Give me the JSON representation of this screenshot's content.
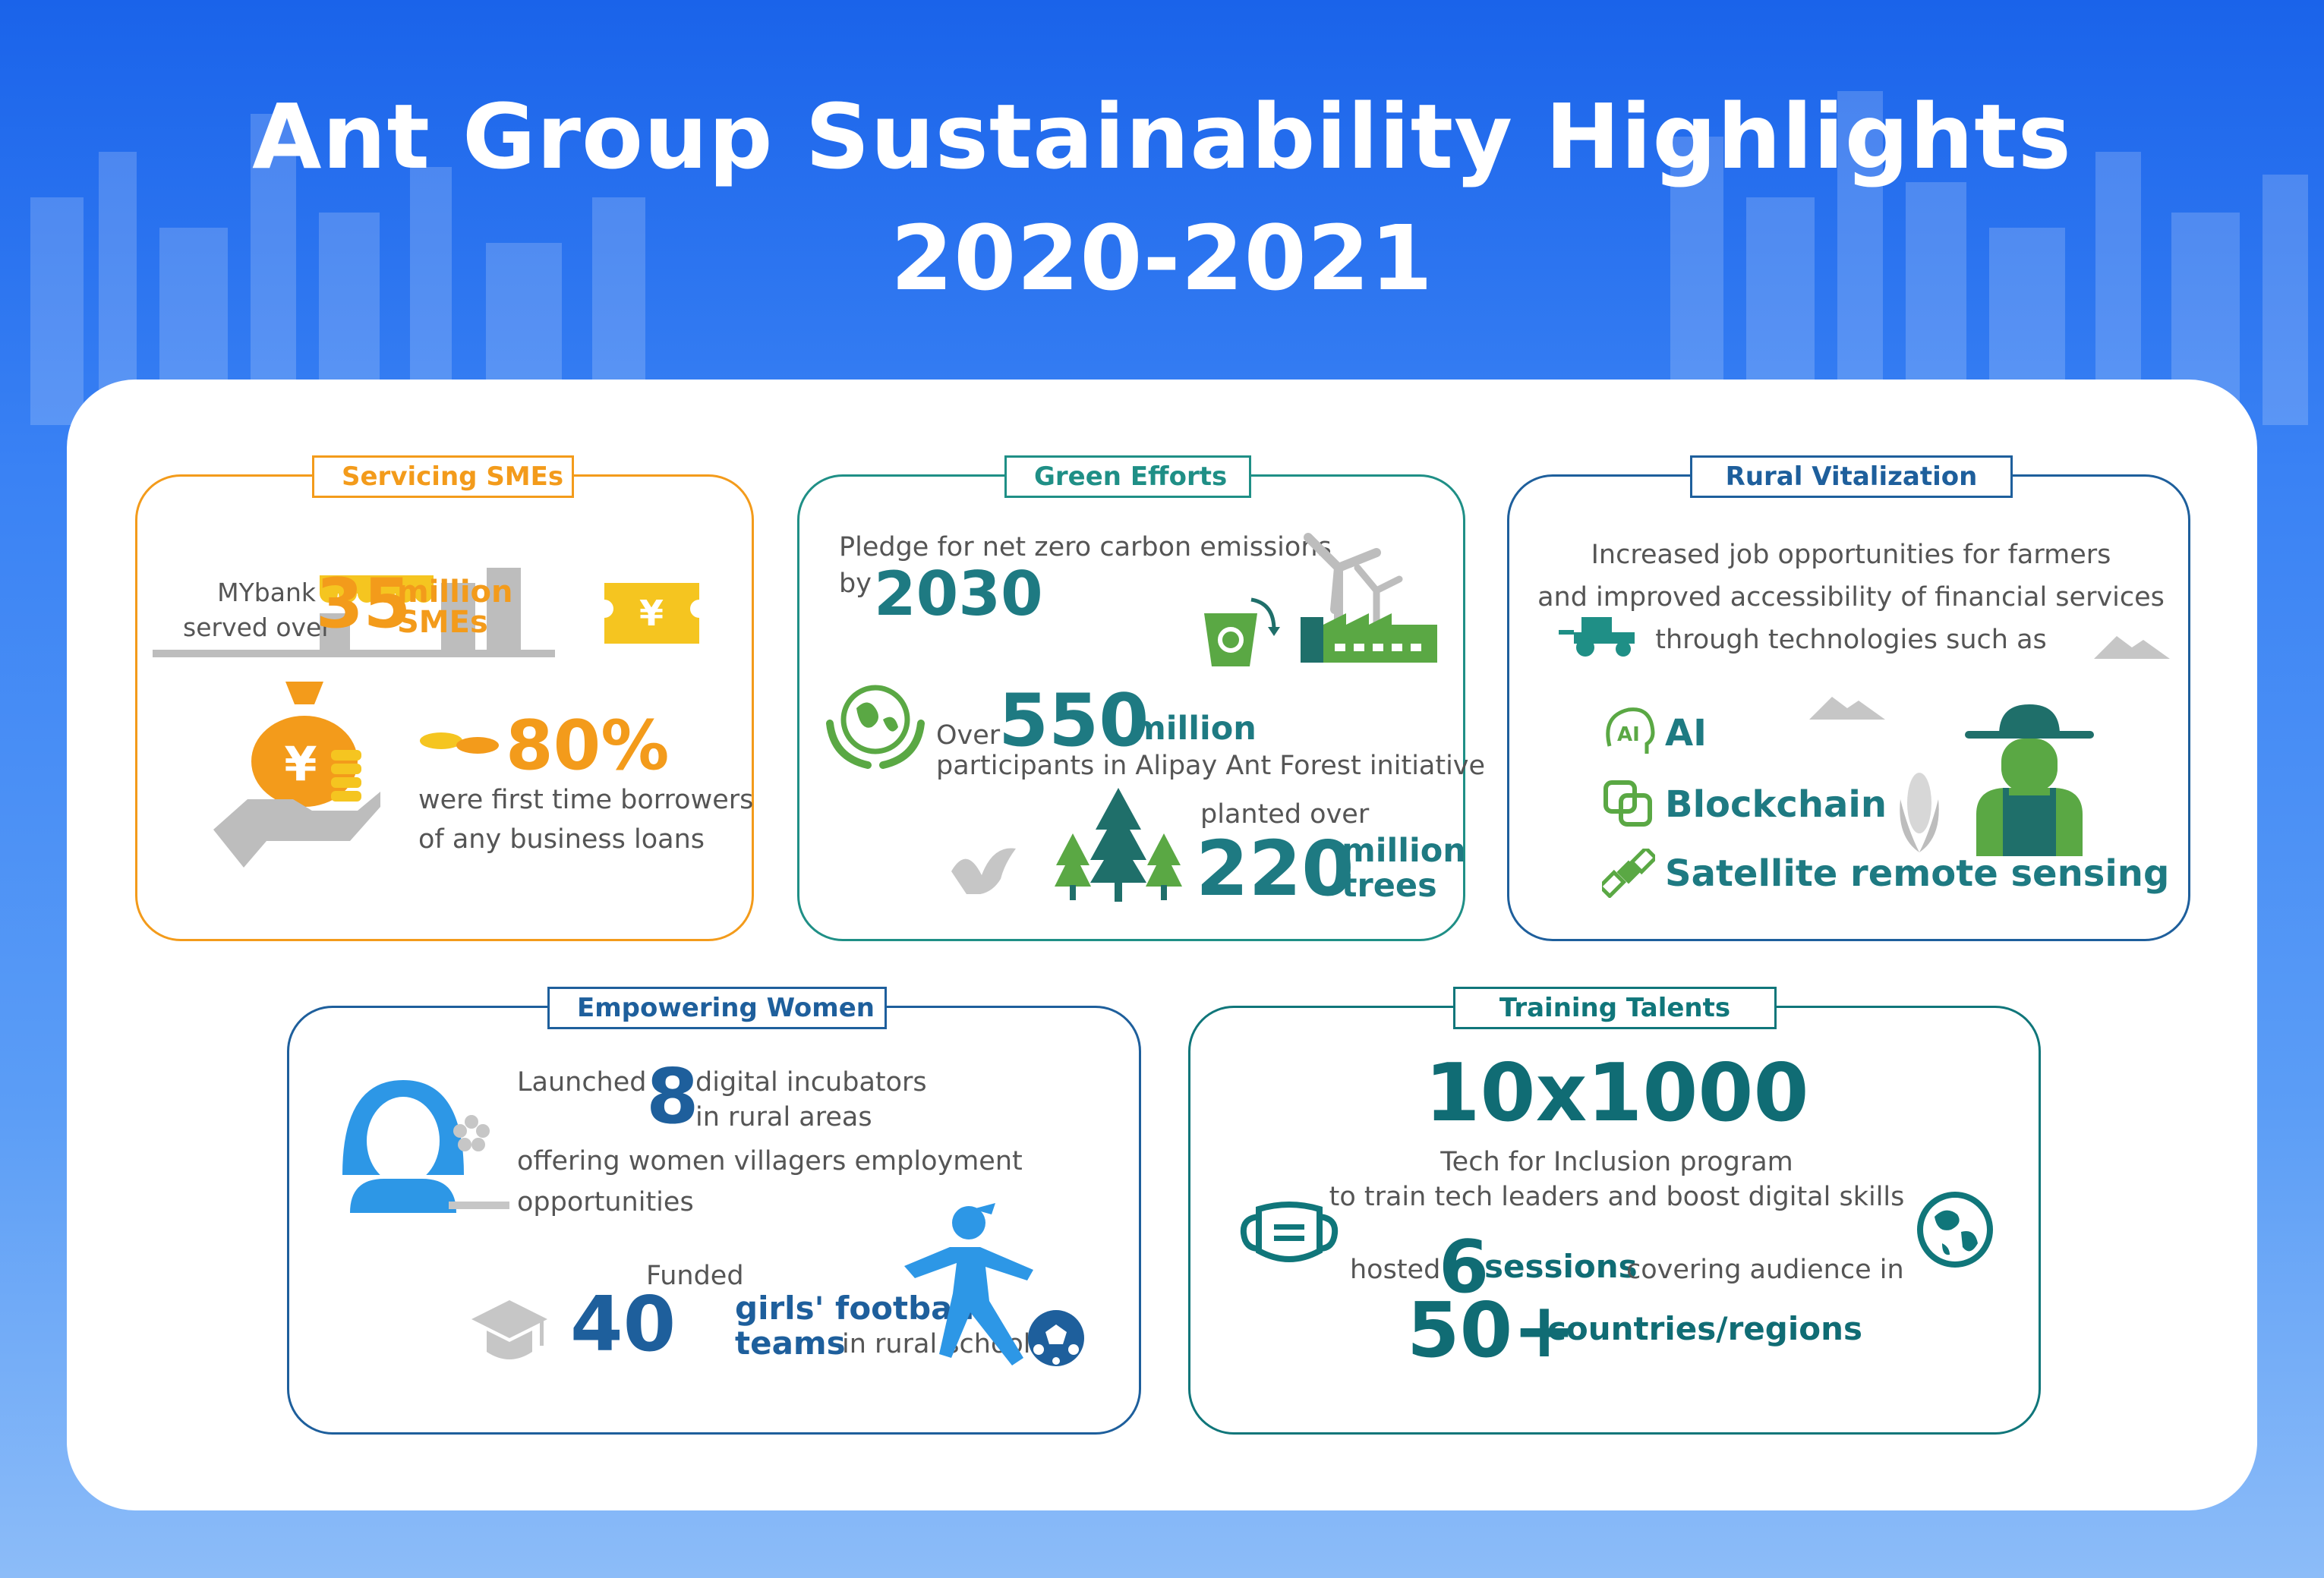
{
  "header": {
    "title_line1": "Ant Group Sustainability Highlights",
    "title_line2": "2020-2021"
  },
  "colors": {
    "sme": "#f39b1b",
    "green": "#1f8f86",
    "rural": "#1e5f9c",
    "women": "#1e5f9c",
    "talent": "#10767a"
  },
  "sme": {
    "tag": "Servicing SMEs",
    "mybank_line1": "MYbank",
    "mybank_line2": "served over",
    "num": "35",
    "unit1": "million",
    "unit2": "SMEs",
    "pct": "80%",
    "borrow_line1": "were first time borrowers",
    "borrow_line2": "of any business loans",
    "icons": [
      "shop-icon",
      "coupon-icon",
      "money-bag-icon",
      "coins-icon",
      "hand-icon"
    ]
  },
  "green": {
    "tag": "Green Efforts",
    "pledge_line1": "Pledge for net zero carbon emissions",
    "pledge_by": "by",
    "year": "2030",
    "over": "Over",
    "num": "550",
    "unit": "million",
    "participants": "participants in Alipay Ant Forest initiative",
    "planted": "planted over",
    "trees_num": "220",
    "trees_unit1": "million",
    "trees_unit2": "trees",
    "icons": [
      "recycle-bin-icon",
      "wind-turbine-icon",
      "factory-icon",
      "globe-hands-icon",
      "bird-icon",
      "trees-icon"
    ]
  },
  "rural": {
    "tag": "Rural Vitalization",
    "desc_line1": "Increased job opportunities for farmers",
    "desc_line2": "and improved accessibility of financial services",
    "desc_line3": "through technologies such as",
    "tech": [
      "AI",
      "Blockchain",
      "Satellite remote sensing"
    ],
    "icons": [
      "tractor-icon",
      "ai-icon",
      "blockchain-icon",
      "satellite-icon",
      "farmer-icon",
      "corn-icon",
      "mountain-icon"
    ]
  },
  "women": {
    "tag": "Empowering Women",
    "launched": "Launched",
    "num": "8",
    "incub_line1": "digital incubators",
    "incub_line2": "in rural areas",
    "offer_line1": "offering women villagers employment",
    "offer_line2": "opportunities",
    "funded": "Funded",
    "teams_num": "40",
    "teams_line1": "girls' football",
    "teams_line2a": "teams",
    "teams_line2b": "in rural schools",
    "icons": [
      "woman-icon",
      "flower-icon",
      "graduation-cap-icon",
      "football-player-icon",
      "football-icon"
    ]
  },
  "talent": {
    "tag": "Training Talents",
    "big": "10x1000",
    "prog_line1": "Tech for Inclusion program",
    "prog_line2": "to train tech leaders and boost digital skills",
    "hosted": "hosted",
    "sessions_num": "6",
    "sessions": "sessions",
    "covering": "covering audience in",
    "countries_num": "50+",
    "countries": "countries/regions",
    "icons": [
      "mask-icon",
      "globe-icon"
    ]
  }
}
